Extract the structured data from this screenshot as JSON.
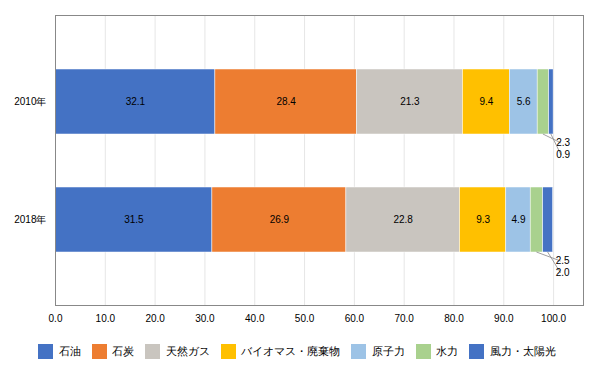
{
  "chart_data": {
    "type": "bar",
    "orientation": "horizontal",
    "stacked": true,
    "categories": [
      "2010年",
      "2018年"
    ],
    "series": [
      {
        "name": "石油",
        "color": "#4472C4",
        "values": [
          32.1,
          31.5
        ]
      },
      {
        "name": "石炭",
        "color": "#ED7D31",
        "values": [
          28.4,
          26.9
        ]
      },
      {
        "name": "天然ガス",
        "color": "#C9C5BF",
        "values": [
          21.3,
          22.8
        ]
      },
      {
        "name": "バイオマス・廃棄物",
        "color": "#FFC000",
        "values": [
          9.4,
          9.3
        ]
      },
      {
        "name": "原子力",
        "color": "#9DC3E6",
        "values": [
          5.6,
          4.9
        ]
      },
      {
        "name": "水力",
        "color": "#A9D18E",
        "values": [
          2.3,
          2.5
        ]
      },
      {
        "name": "風力・太陽光",
        "color": "#4472C4",
        "values": [
          0.9,
          2.0
        ],
        "value_labels": [
          "0.9",
          "2.0"
        ]
      }
    ],
    "xlim": [
      0,
      106
    ],
    "xticks": [
      {
        "value": 0,
        "label": "0.0"
      },
      {
        "value": 10,
        "label": "10.0"
      },
      {
        "value": 20,
        "label": "20.0"
      },
      {
        "value": 30,
        "label": "30.0"
      },
      {
        "value": 40,
        "label": "40.0"
      },
      {
        "value": 50,
        "label": "50.0"
      },
      {
        "value": 60,
        "label": "60.0"
      },
      {
        "value": 70,
        "label": "70.0"
      },
      {
        "value": 80,
        "label": "80.0"
      },
      {
        "value": 90,
        "label": "90.0"
      },
      {
        "value": 100,
        "label": "100.0"
      }
    ],
    "grid": true,
    "data_labels": true,
    "legend": "bottom"
  }
}
